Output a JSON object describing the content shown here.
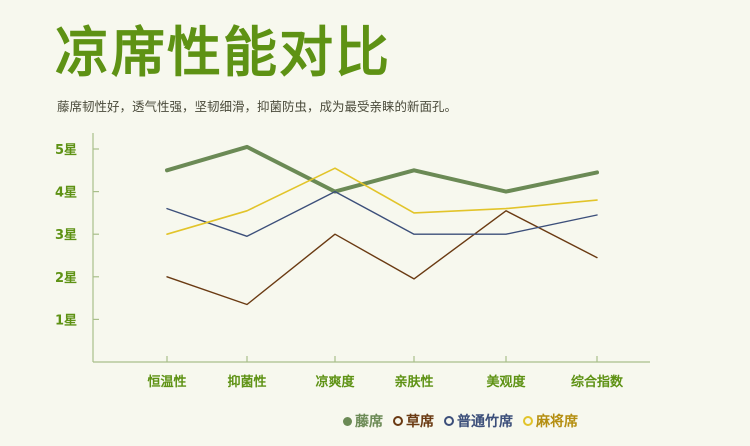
{
  "title": "凉席性能对比",
  "subtitle": "藤席韧性好，透气性强，坚韧细滑，抑菌防虫，成为最受亲睐的新面孔。",
  "colors": {
    "title": "#5e9214",
    "axis": "#a9bf8a",
    "tick_text": "#5e9214"
  },
  "chart_data": {
    "type": "line",
    "categories": [
      "恒温性",
      "抑菌性",
      "凉爽度",
      "亲肤性",
      "美观度",
      "综合指数"
    ],
    "y_ticks": [
      "1星",
      "2星",
      "3星",
      "4星",
      "5星"
    ],
    "ylim": [
      0,
      5.3
    ],
    "grid": false,
    "legend_position": "bottom-right",
    "series": [
      {
        "name": "藤席",
        "color": "#6b8a55",
        "width": 4,
        "marker": "filled",
        "values": [
          4.5,
          5.05,
          4.0,
          4.5,
          4.0,
          4.45
        ]
      },
      {
        "name": "草席",
        "color": "#6a3a12",
        "width": 1.4,
        "marker": "ring",
        "values": [
          2.0,
          1.35,
          3.0,
          1.95,
          3.55,
          2.45
        ]
      },
      {
        "name": "普通竹席",
        "color": "#3c4f7a",
        "width": 1.4,
        "marker": "ring",
        "values": [
          3.6,
          2.95,
          4.0,
          3.0,
          3.0,
          3.45
        ]
      },
      {
        "name": "麻将席",
        "color": "#e2c42a",
        "width": 1.6,
        "marker": "ring",
        "values": [
          3.0,
          3.55,
          4.55,
          3.5,
          3.6,
          3.8
        ]
      }
    ]
  }
}
